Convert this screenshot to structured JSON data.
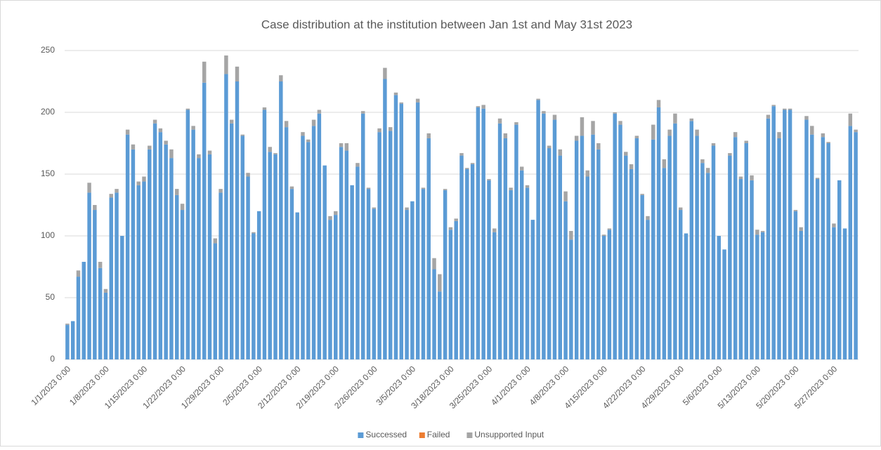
{
  "chart_data": {
    "type": "stacked_bar",
    "title": "Case distribution at the institution between Jan 1st and May 31st 2023",
    "categories": [
      "1/1/2023 0:00",
      null,
      null,
      null,
      null,
      null,
      null,
      "1/8/2023 0:00",
      null,
      null,
      null,
      null,
      null,
      null,
      "1/15/2023 0:00",
      null,
      null,
      null,
      null,
      null,
      null,
      "1/22/2023 0:00",
      null,
      null,
      null,
      null,
      null,
      null,
      "1/29/2023 0:00",
      null,
      null,
      null,
      null,
      null,
      null,
      "2/5/2023 0:00",
      null,
      null,
      null,
      null,
      null,
      null,
      "2/12/2023 0:00",
      null,
      null,
      null,
      null,
      null,
      null,
      "2/19/2023 0:00",
      null,
      null,
      null,
      null,
      null,
      null,
      "2/26/2023 0:00",
      null,
      null,
      null,
      null,
      null,
      null,
      "3/5/2023 0:00",
      null,
      null,
      null,
      null,
      null,
      null,
      "3/18/2023 0:00",
      null,
      null,
      null,
      null,
      null,
      null,
      "3/25/2023 0:00",
      null,
      null,
      null,
      null,
      null,
      null,
      "4/1/2023 0:00",
      null,
      null,
      null,
      null,
      null,
      null,
      "4/8/2023 0:00",
      null,
      null,
      null,
      null,
      null,
      null,
      "4/15/2023 0:00",
      null,
      null,
      null,
      null,
      null,
      null,
      "4/22/2023 0:00",
      null,
      null,
      null,
      null,
      null,
      null,
      "4/29/2023 0:00",
      null,
      null,
      null,
      null,
      null,
      null,
      "5/6/2023 0:00",
      null,
      null,
      null,
      null,
      null,
      null,
      "5/13/2023 0:00",
      null,
      null,
      null,
      null,
      null,
      null,
      "5/20/2023 0:00",
      null,
      null,
      null,
      null,
      null,
      null,
      "5/27/2023 0:00",
      null,
      null,
      null,
      null
    ],
    "series": [
      {
        "name": "Successed",
        "color": "#5b9bd5",
        "values": [
          28,
          31,
          67,
          79,
          135,
          121,
          74,
          54,
          131,
          135,
          100,
          182,
          170,
          141,
          144,
          170,
          191,
          184,
          174,
          163,
          133,
          121,
          202,
          186,
          163,
          224,
          166,
          94,
          135,
          231,
          191,
          225,
          181,
          148,
          102,
          120,
          202,
          168,
          166,
          225,
          188,
          138,
          119,
          181,
          176,
          189,
          199,
          157,
          113,
          117,
          172,
          169,
          141,
          156,
          199,
          138,
          122,
          184,
          227,
          185,
          214,
          207,
          121,
          128,
          208,
          138,
          179,
          73,
          55,
          137,
          105,
          112,
          165,
          154,
          158,
          204,
          203,
          145,
          103,
          191,
          179,
          137,
          190,
          153,
          139,
          113,
          210,
          199,
          171,
          194,
          165,
          128,
          97,
          177,
          181,
          148,
          182,
          170,
          100,
          105,
          199,
          190,
          165,
          154,
          179,
          133,
          113,
          178,
          204,
          155,
          181,
          191,
          121,
          102,
          193,
          181,
          159,
          151,
          173,
          100,
          89,
          165,
          180,
          146,
          175,
          145,
          101,
          103,
          195,
          205,
          179,
          202,
          202,
          120,
          104,
          194,
          182,
          146,
          180,
          175,
          107,
          145,
          106,
          189,
          184
        ]
      },
      {
        "name": "Failed",
        "color": "#ed7d31",
        "values": [
          0,
          0,
          0,
          0,
          0,
          0,
          0,
          0,
          0,
          0,
          0,
          0,
          0,
          0,
          0,
          0,
          0,
          0,
          0,
          0,
          0,
          0,
          0,
          0,
          0,
          0,
          0,
          0,
          0,
          0,
          0,
          0,
          0,
          0,
          0,
          0,
          0,
          0,
          0,
          0,
          0,
          0,
          0,
          0,
          0,
          0,
          0,
          0,
          0,
          0,
          0,
          0,
          0,
          0,
          0,
          0,
          0,
          0,
          0,
          0,
          0,
          0,
          0,
          0,
          0,
          0,
          0,
          0,
          0,
          0,
          0,
          0,
          0,
          0,
          0,
          0,
          0,
          0,
          0,
          0,
          0,
          0,
          0,
          0,
          0,
          0,
          0,
          0,
          0,
          0,
          0,
          0,
          0,
          0,
          0,
          0,
          0,
          0,
          0,
          0,
          0,
          0,
          0,
          0,
          0,
          0,
          0,
          0,
          0,
          0,
          0,
          0,
          0,
          0,
          0,
          0,
          0,
          0,
          0,
          0,
          0,
          0,
          0,
          0,
          0,
          0,
          0,
          0,
          0,
          0,
          0,
          0,
          0,
          0,
          0,
          0,
          0,
          0,
          0,
          0,
          0,
          0,
          0,
          0,
          0
        ]
      },
      {
        "name": "Unsupported Input",
        "color": "#a5a5a5",
        "values": [
          1,
          0,
          5,
          0,
          8,
          4,
          5,
          3,
          3,
          3,
          0,
          4,
          4,
          3,
          4,
          3,
          3,
          3,
          3,
          7,
          5,
          5,
          1,
          3,
          3,
          17,
          3,
          4,
          3,
          15,
          3,
          12,
          1,
          3,
          1,
          0,
          2,
          4,
          1,
          5,
          5,
          2,
          0,
          3,
          2,
          5,
          3,
          0,
          3,
          3,
          3,
          6,
          0,
          3,
          2,
          1,
          1,
          3,
          9,
          3,
          2,
          1,
          2,
          0,
          3,
          1,
          4,
          9,
          14,
          1,
          2,
          2,
          2,
          1,
          1,
          1,
          3,
          1,
          3,
          4,
          4,
          2,
          2,
          3,
          2,
          0,
          1,
          2,
          2,
          4,
          5,
          8,
          7,
          4,
          15,
          5,
          11,
          5,
          1,
          1,
          1,
          3,
          3,
          4,
          2,
          1,
          3,
          12,
          6,
          7,
          5,
          8,
          2,
          0,
          2,
          5,
          3,
          4,
          2,
          0,
          0,
          2,
          4,
          2,
          2,
          4,
          4,
          1,
          3,
          1,
          5,
          1,
          1,
          1,
          3,
          3,
          7,
          1,
          3,
          1,
          3,
          0,
          0,
          10,
          2
        ]
      }
    ],
    "ylim": [
      0,
      250
    ],
    "yticks": [
      0,
      50,
      100,
      150,
      200,
      250
    ],
    "grid": true,
    "legend": "bottom"
  }
}
